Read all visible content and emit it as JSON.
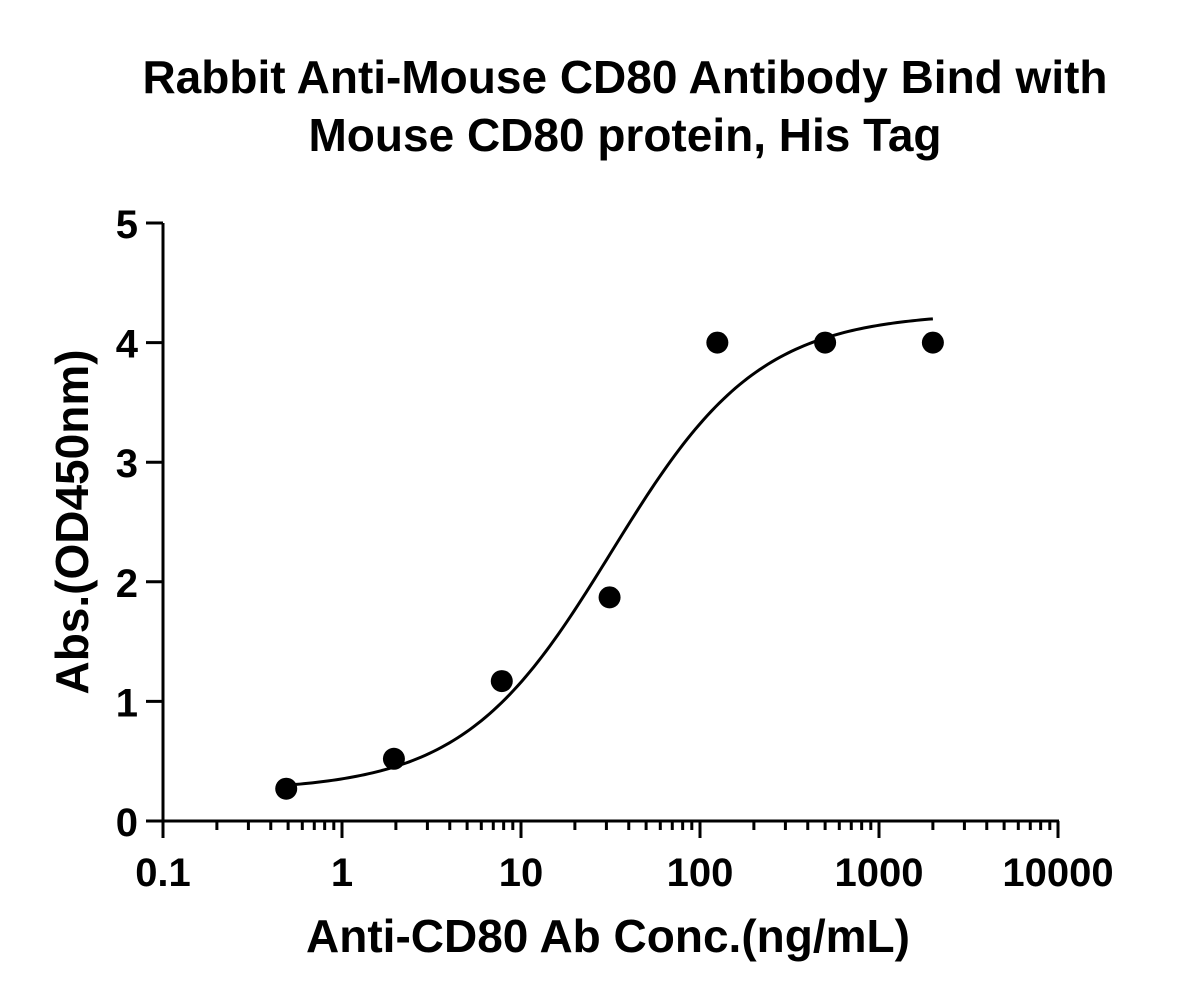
{
  "chart_data": {
    "type": "scatter",
    "title": [
      "Rabbit Anti-Mouse CD80 Antibody Bind with",
      "Mouse CD80 protein, His Tag"
    ],
    "xlabel": "Anti-CD80 Ab Conc.(ng/mL)",
    "ylabel": "Abs.(OD450nm)",
    "xscale": "log",
    "xlim": [
      0.1,
      10000
    ],
    "ylim": [
      0,
      5
    ],
    "x_ticks": [
      "0.1",
      "1",
      "10",
      "100",
      "1000",
      "10000"
    ],
    "y_ticks": [
      "0",
      "1",
      "2",
      "3",
      "4",
      "5"
    ],
    "grid": false,
    "legend": "none",
    "series": [
      {
        "points": [
          {
            "x": 0.488,
            "y": 0.27
          },
          {
            "x": 1.95,
            "y": 0.52
          },
          {
            "x": 7.81,
            "y": 1.17
          },
          {
            "x": 31.25,
            "y": 1.87
          },
          {
            "x": 125,
            "y": 4.0
          },
          {
            "x": 500,
            "y": 4.0
          },
          {
            "x": 2000,
            "y": 4.0
          }
        ],
        "marker": "circle",
        "color": "#000000"
      }
    ],
    "fit_curve": {
      "model": "four-parameter logistic",
      "bottom": 0.25,
      "top": 4.25,
      "ec50": 32,
      "hill_slope": 1.05,
      "x_range": [
        0.5,
        2000
      ],
      "color": "#000000"
    }
  }
}
